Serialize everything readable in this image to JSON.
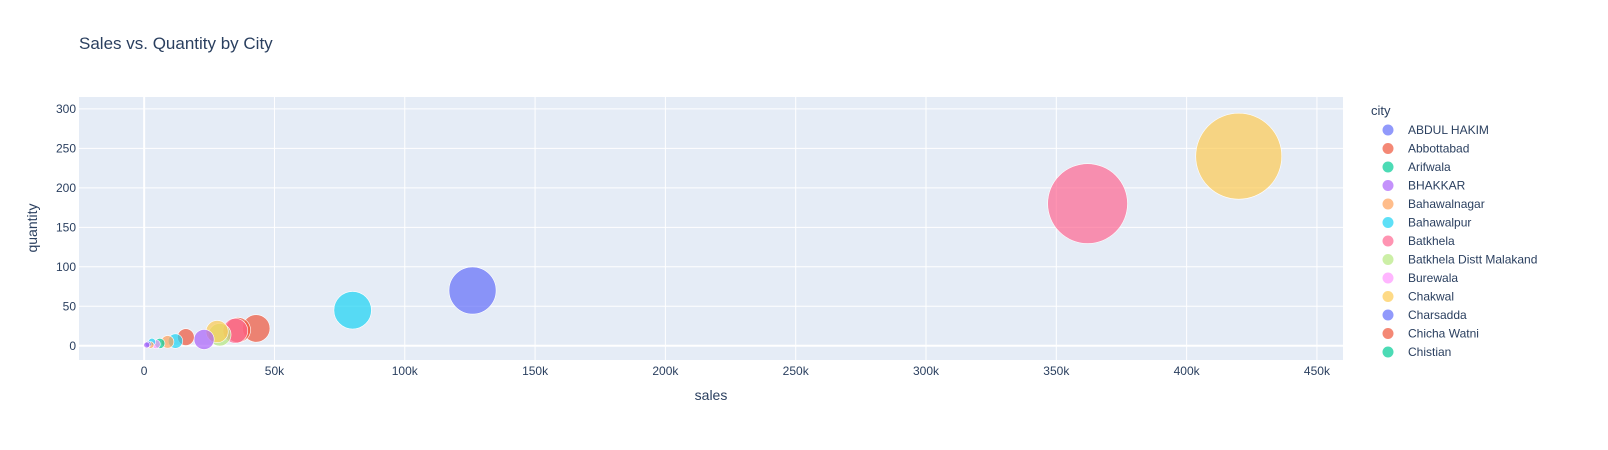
{
  "chart_data": {
    "type": "scatter",
    "title": "Sales vs. Quantity by City",
    "xlabel": "sales",
    "ylabel": "quantity",
    "xlim": [
      -25000,
      460000
    ],
    "ylim": [
      -18,
      315
    ],
    "x_ticks": [
      0,
      50000,
      100000,
      150000,
      200000,
      250000,
      300000,
      350000,
      400000,
      450000
    ],
    "x_tick_labels": [
      "0",
      "50k",
      "100k",
      "150k",
      "200k",
      "250k",
      "300k",
      "350k",
      "400k",
      "450k"
    ],
    "y_ticks": [
      0,
      50,
      100,
      150,
      200,
      250,
      300
    ],
    "y_tick_labels": [
      "0",
      "50",
      "100",
      "150",
      "200",
      "250",
      "300"
    ],
    "grid": true,
    "bubble_size_by": "sales",
    "legend_title": "city",
    "legend_position": "right",
    "legend": [
      {
        "name": "ABDUL HAKIM",
        "color": "#636efa"
      },
      {
        "name": "Abbottabad",
        "color": "#EF553B"
      },
      {
        "name": "Arifwala",
        "color": "#00cc96"
      },
      {
        "name": "BHAKKAR",
        "color": "#ab63fa"
      },
      {
        "name": "Bahawalnagar",
        "color": "#FFA15A"
      },
      {
        "name": "Bahawalpur",
        "color": "#19d3f3"
      },
      {
        "name": "Batkhela",
        "color": "#FF6692"
      },
      {
        "name": "Batkhela Distt Malakand",
        "color": "#B6E880"
      },
      {
        "name": "Burewala",
        "color": "#FF97FF"
      },
      {
        "name": "Chakwal",
        "color": "#FECB52"
      },
      {
        "name": "Charsadda",
        "color": "#636efa"
      },
      {
        "name": "Chicha Watni",
        "color": "#EF553B"
      },
      {
        "name": "Chistian",
        "color": "#00cc96"
      }
    ],
    "points": [
      {
        "x": 420000,
        "y": 240,
        "color": "#FECB52"
      },
      {
        "x": 362000,
        "y": 180,
        "color": "#FF6692"
      },
      {
        "x": 126000,
        "y": 70,
        "color": "#636efa"
      },
      {
        "x": 80000,
        "y": 45,
        "color": "#19d3f3"
      },
      {
        "x": 43000,
        "y": 22,
        "color": "#EF553B"
      },
      {
        "x": 36000,
        "y": 20,
        "color": "#EF553B"
      },
      {
        "x": 35000,
        "y": 19,
        "color": "#FF6692"
      },
      {
        "x": 28000,
        "y": 18,
        "color": "#FECB52"
      },
      {
        "x": 29000,
        "y": 14,
        "color": "#B6E880"
      },
      {
        "x": 23000,
        "y": 8,
        "color": "#ab63fa"
      },
      {
        "x": 16000,
        "y": 11,
        "color": "#EF553B"
      },
      {
        "x": 12000,
        "y": 6,
        "color": "#19d3f3"
      },
      {
        "x": 9000,
        "y": 5,
        "color": "#FFA15A"
      },
      {
        "x": 6000,
        "y": 3,
        "color": "#00cc96"
      },
      {
        "x": 4500,
        "y": 2,
        "color": "#FF97FF"
      },
      {
        "x": 3000,
        "y": 5,
        "color": "#19d3f3"
      },
      {
        "x": 2500,
        "y": 1,
        "color": "#FFA15A"
      },
      {
        "x": 1500,
        "y": 2,
        "color": "#636efa"
      },
      {
        "x": 1000,
        "y": 1,
        "color": "#ab63fa"
      }
    ]
  }
}
